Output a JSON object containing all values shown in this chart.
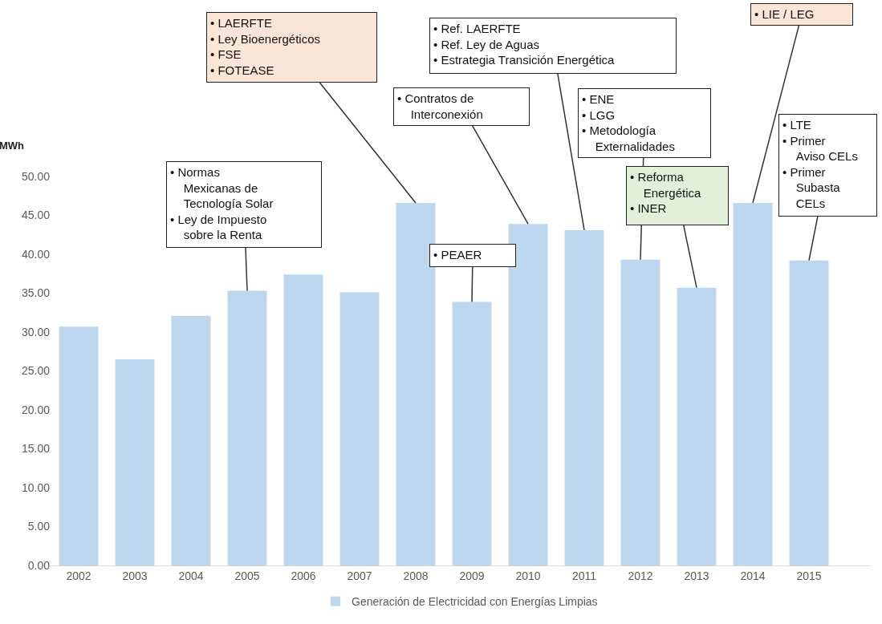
{
  "chart_data": {
    "type": "bar",
    "ylabel": "MWh",
    "categories": [
      "2002",
      "2003",
      "2004",
      "2005",
      "2006",
      "2007",
      "2008",
      "2009",
      "2010",
      "2011",
      "2012",
      "2013",
      "2014",
      "2015"
    ],
    "series": [
      {
        "name": "Generación de Electricidad con Energías Limpias",
        "color": "#bdd7ee",
        "values": [
          30.7,
          26.5,
          32.1,
          35.3,
          37.4,
          35.1,
          46.6,
          33.9,
          43.9,
          43.1,
          39.3,
          35.7,
          46.6,
          39.2
        ]
      }
    ],
    "ylim": [
      0,
      50
    ],
    "yticks": [
      {
        "value": 0,
        "label": "0.00"
      },
      {
        "value": 5,
        "label": "5.00"
      },
      {
        "value": 10,
        "label": "10.00"
      },
      {
        "value": 15,
        "label": "15.00"
      },
      {
        "value": 20,
        "label": "20.00"
      },
      {
        "value": 25,
        "label": "25.00"
      },
      {
        "value": 30,
        "label": "30.00"
      },
      {
        "value": 35,
        "label": "35.00"
      },
      {
        "value": 40,
        "label": "40.00"
      },
      {
        "value": 45,
        "label": "45.00"
      },
      {
        "value": 50,
        "label": "50.00"
      }
    ],
    "grid": false,
    "legend": "bottom",
    "annotations": [
      {
        "text": "• Normas Mexicanas de Tecnología Solar\n• Ley de Impuesto sobre la Renta",
        "x": "2005",
        "y": 35.3
      },
      {
        "text": "• LAERFTE\n• Ley Bioenergéticos\n• FSE\n• FOTEASE",
        "x": "2008",
        "y": 46.6
      },
      {
        "text": "• PEAER",
        "x": "2009",
        "y": 33.9
      },
      {
        "text": "• Contratos de Interconexión",
        "x": "2010",
        "y": 43.9
      },
      {
        "text": "• Ref. LAERFTE\n• Ref. Ley de Aguas\n• Estrategia Transición Energética",
        "x": "2011",
        "y": 43.1
      },
      {
        "text": "• ENE\n• LGG\n• Metodología Externalidades",
        "x": "2012",
        "y": 39.3
      },
      {
        "text": "• Reforma Energética\n• INER",
        "x": "2013",
        "y": 35.7
      },
      {
        "text": "• LIE / LEG",
        "x": "2014",
        "y": 46.6
      },
      {
        "text": "• LTE\n• Primer Aviso CELs\n• Primer Subasta CELs",
        "x": "2015",
        "y": 39.2
      }
    ]
  }
}
